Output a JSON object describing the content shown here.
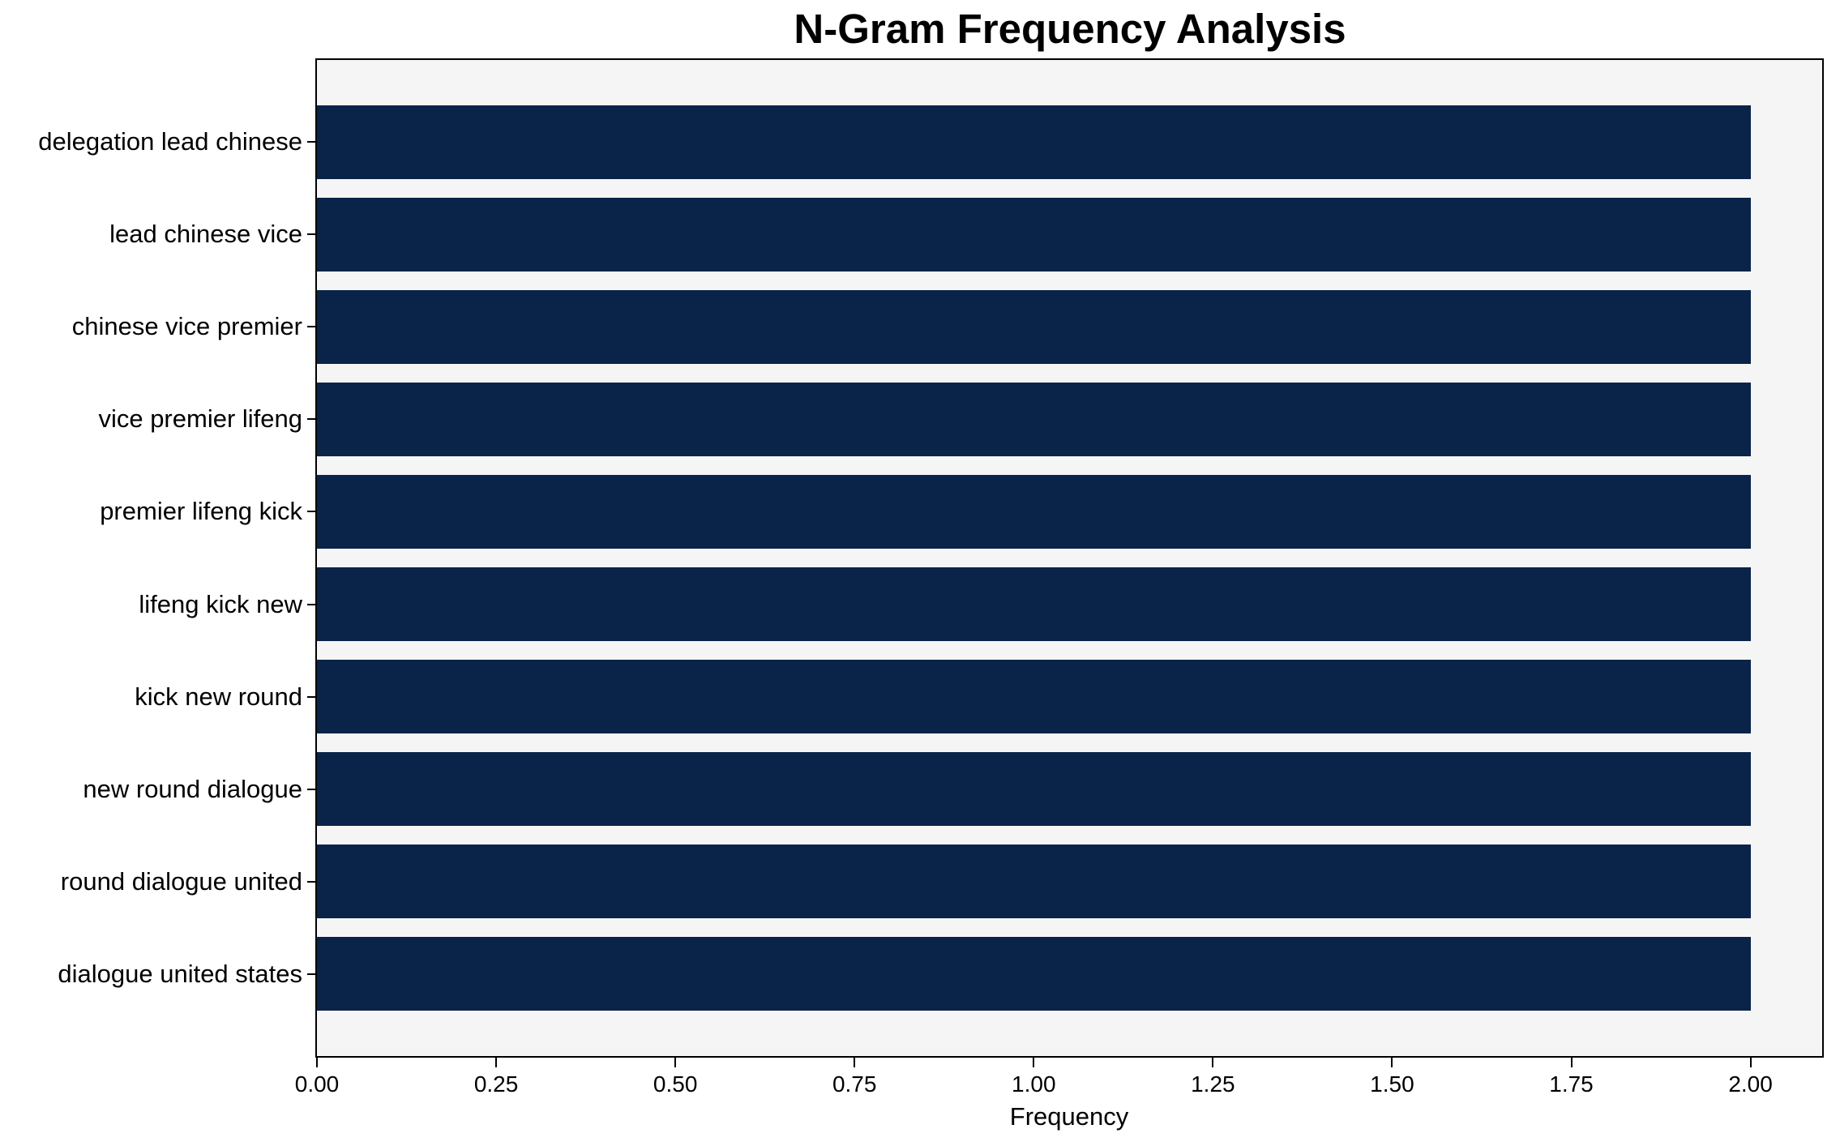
{
  "chart_data": {
    "type": "bar",
    "orientation": "horizontal",
    "title": "N-Gram Frequency Analysis",
    "xlabel": "Frequency",
    "ylabel": "",
    "categories": [
      "delegation lead chinese",
      "lead chinese vice",
      "chinese vice premier",
      "vice premier lifeng",
      "premier lifeng kick",
      "lifeng kick new",
      "kick new round",
      "new round dialogue",
      "round dialogue united",
      "dialogue united states"
    ],
    "values": [
      2,
      2,
      2,
      2,
      2,
      2,
      2,
      2,
      2,
      2
    ],
    "xlim": [
      0,
      2.1
    ],
    "xticks": [
      0.0,
      0.25,
      0.5,
      0.75,
      1.0,
      1.25,
      1.5,
      1.75,
      2.0
    ],
    "xtick_labels": [
      "0.00",
      "0.25",
      "0.50",
      "0.75",
      "1.00",
      "1.25",
      "1.50",
      "1.75",
      "2.00"
    ],
    "grid": false,
    "legend": null,
    "colors": {
      "bar": "#0a2348",
      "plot_background": "#f5f5f5",
      "figure_background": "#ffffff",
      "axis": "#000000",
      "text": "#000000"
    }
  }
}
